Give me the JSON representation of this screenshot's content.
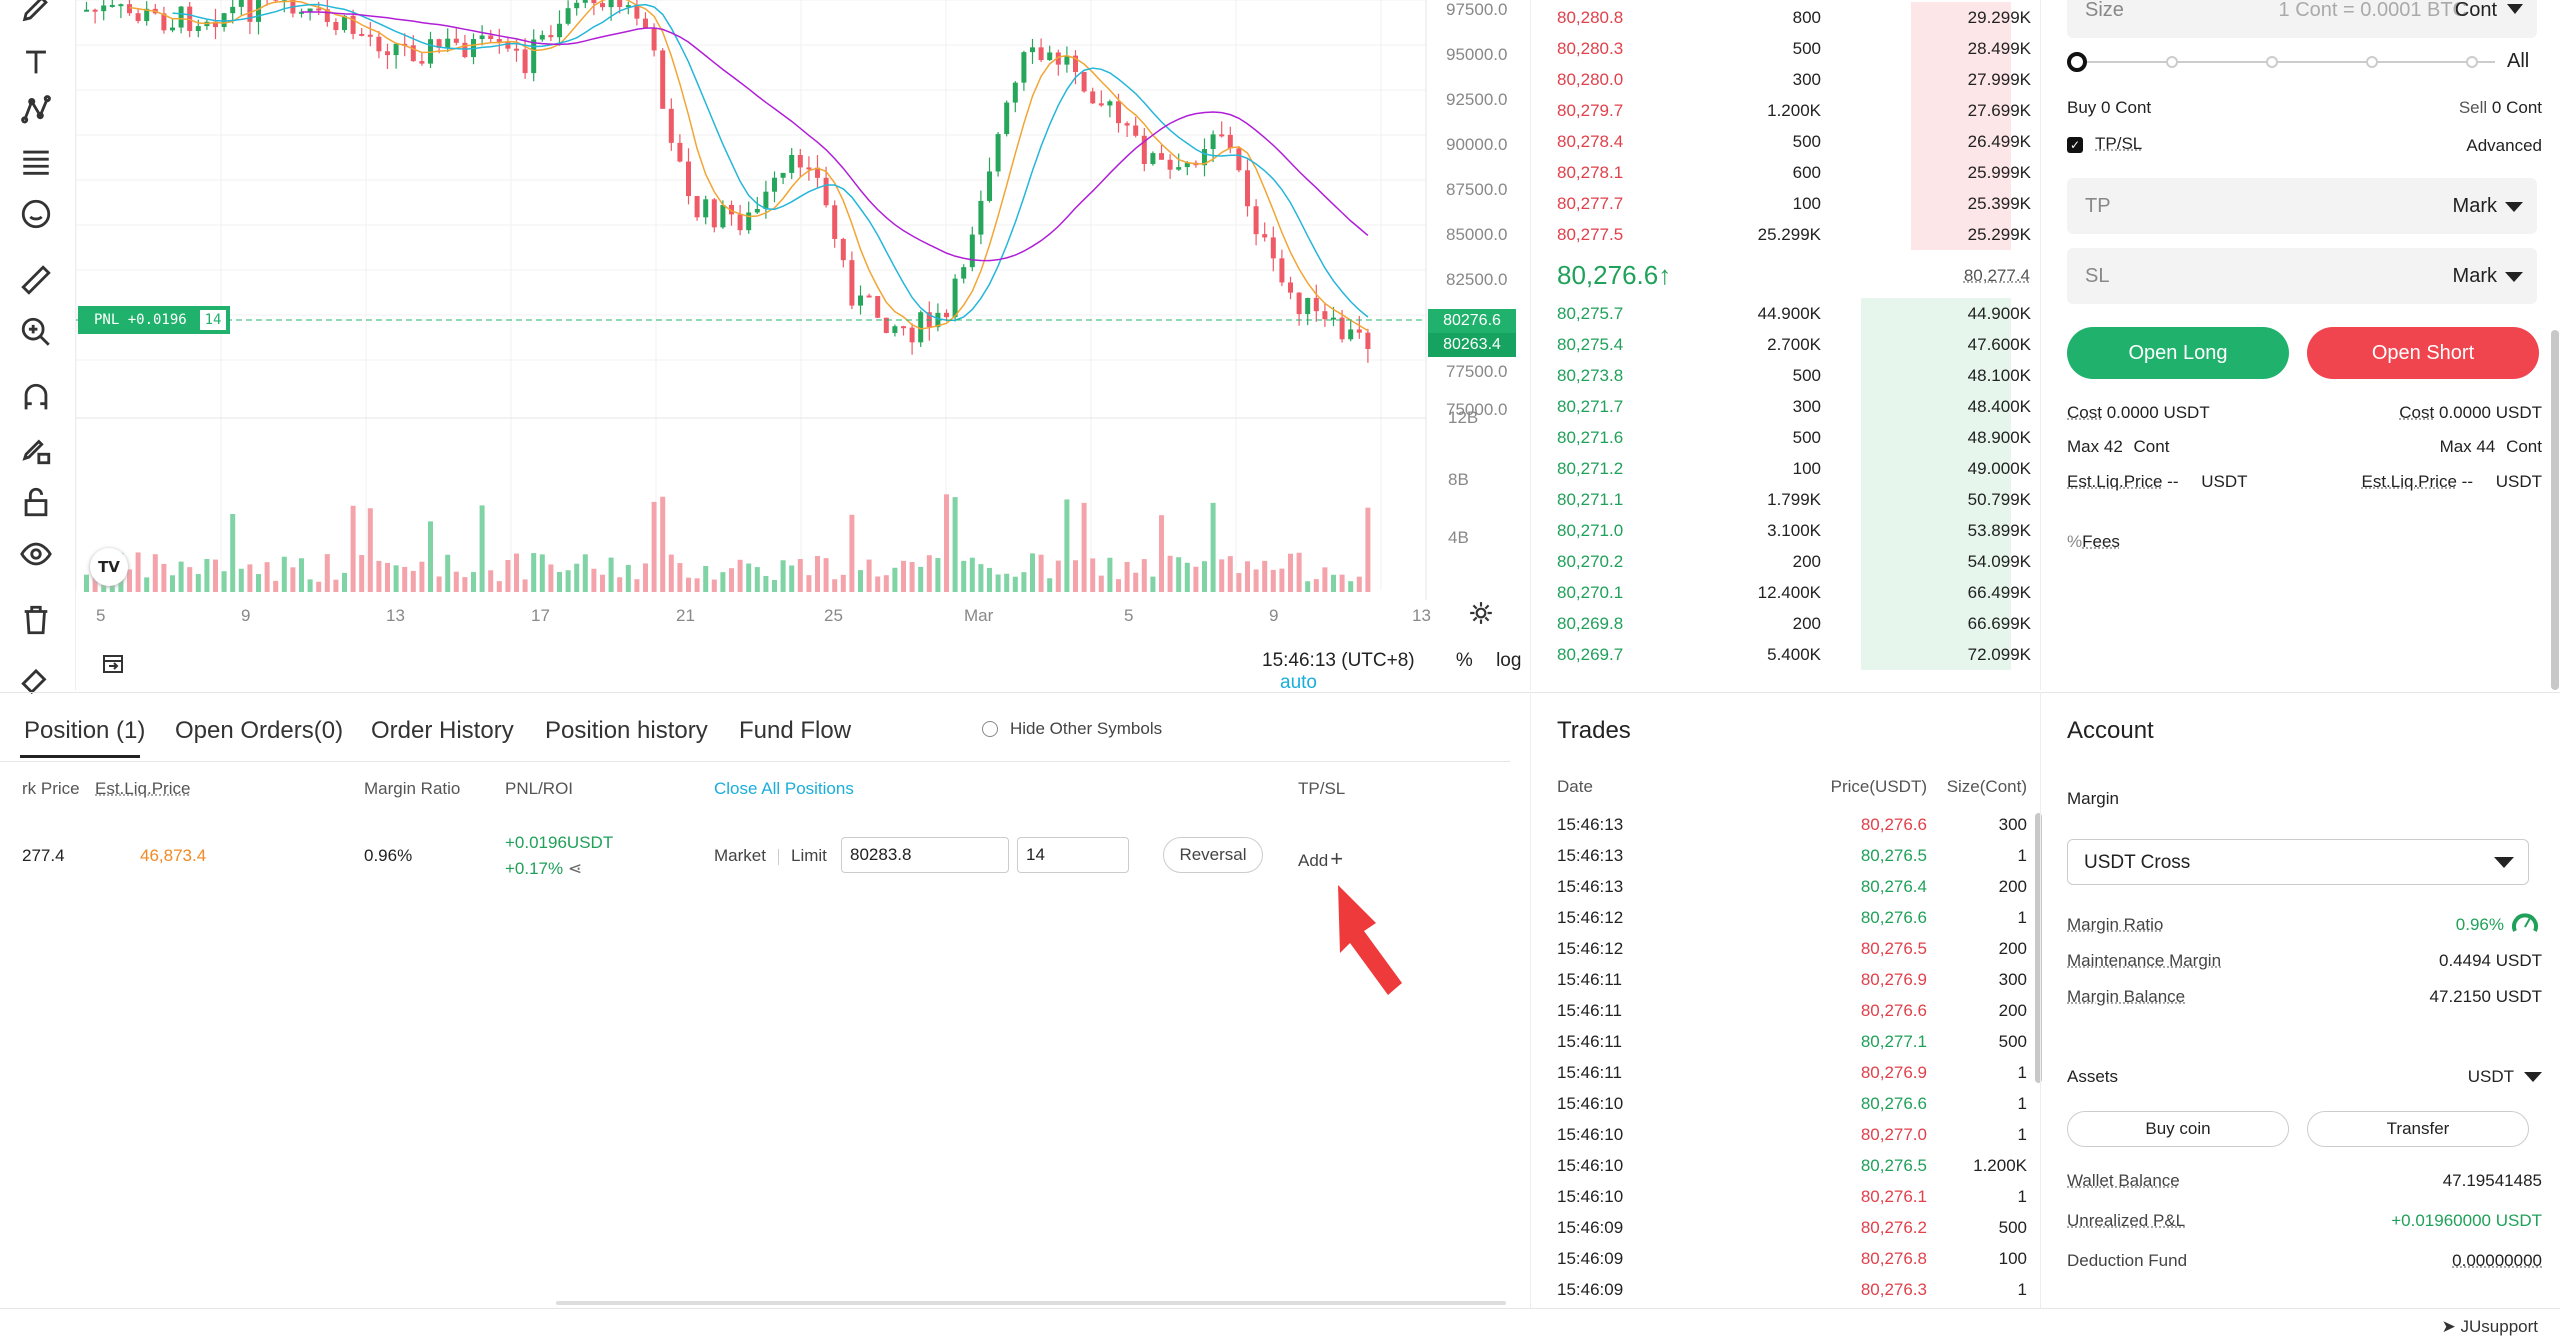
{
  "chart": {
    "y_ticks": [
      "97500.0",
      "95000.0",
      "92500.0",
      "90000.0",
      "87500.0",
      "85000.0",
      "82500.0",
      "77500.0",
      "75000.0"
    ],
    "vol_ticks": [
      "12B",
      "8B",
      "4B"
    ],
    "x_ticks": [
      "5",
      "9",
      "13",
      "17",
      "21",
      "25",
      "Mar",
      "5",
      "9",
      "13"
    ],
    "price_badge_last": "80276.6",
    "price_badge_mark": "80263.4",
    "pnl_label": "PNL +0.0196",
    "pnl_qty": "14",
    "time": "15:46:13 (UTC+8)",
    "pct": "%",
    "log": "log",
    "auto": "auto",
    "logo": "TV"
  },
  "orderbook": {
    "asks": [
      {
        "price": "80,280.8",
        "size": "800",
        "total": "29.299K",
        "depth": 0.2
      },
      {
        "price": "80,280.3",
        "size": "500",
        "total": "28.499K",
        "depth": 0.2
      },
      {
        "price": "80,280.0",
        "size": "300",
        "total": "27.999K",
        "depth": 0.2
      },
      {
        "price": "80,279.7",
        "size": "1.200K",
        "total": "27.699K",
        "depth": 0.2
      },
      {
        "price": "80,278.4",
        "size": "500",
        "total": "26.499K",
        "depth": 0.2
      },
      {
        "price": "80,278.1",
        "size": "600",
        "total": "25.999K",
        "depth": 0.2
      },
      {
        "price": "80,277.7",
        "size": "100",
        "total": "25.399K",
        "depth": 0.2
      },
      {
        "price": "80,277.5",
        "size": "25.299K",
        "total": "25.299K",
        "depth": 0.2
      }
    ],
    "last_price": "80,276.6",
    "last_arrow": "↑",
    "mark_price": "80,277.4",
    "bids": [
      {
        "price": "80,275.7",
        "size": "44.900K",
        "total": "44.900K",
        "depth": 0.3
      },
      {
        "price": "80,275.4",
        "size": "2.700K",
        "total": "47.600K",
        "depth": 0.3
      },
      {
        "price": "80,273.8",
        "size": "500",
        "total": "48.100K",
        "depth": 0.3
      },
      {
        "price": "80,271.7",
        "size": "300",
        "total": "48.400K",
        "depth": 0.3
      },
      {
        "price": "80,271.6",
        "size": "500",
        "total": "48.900K",
        "depth": 0.3
      },
      {
        "price": "80,271.2",
        "size": "100",
        "total": "49.000K",
        "depth": 0.3
      },
      {
        "price": "80,271.1",
        "size": "1.799K",
        "total": "50.799K",
        "depth": 0.3
      },
      {
        "price": "80,271.0",
        "size": "3.100K",
        "total": "53.899K",
        "depth": 0.3
      },
      {
        "price": "80,270.2",
        "size": "200",
        "total": "54.099K",
        "depth": 0.3
      },
      {
        "price": "80,270.1",
        "size": "12.400K",
        "total": "66.499K",
        "depth": 0.3
      },
      {
        "price": "80,269.8",
        "size": "200",
        "total": "66.699K",
        "depth": 0.3
      },
      {
        "price": "80,269.7",
        "size": "5.400K",
        "total": "72.099K",
        "depth": 0.3
      }
    ]
  },
  "trade": {
    "size_label": "Size",
    "size_placeholder": "1 Cont = 0.0001 BTC",
    "size_unit": "Cont",
    "all": "All",
    "buy_label": "Buy",
    "buy_val": "0 Cont",
    "sell_label": "Sell",
    "sell_val": "0 Cont",
    "tpsl": "TP/SL",
    "advanced": "Advanced",
    "tp": "TP",
    "sl": "SL",
    "mark": "Mark",
    "open_long": "Open Long",
    "open_short": "Open Short",
    "cost_label": "Cost",
    "cost_long": "0.0000",
    "cost_short": "0.0000",
    "usdt": "USDT",
    "max_label": "Max",
    "max_long": "42",
    "max_short": "44",
    "cont": "Cont",
    "liq_label": "Est.Liq.Price",
    "liq_val": "--",
    "fees": "Fees"
  },
  "positions": {
    "tabs": [
      "Position (1)",
      "Open Orders(0)",
      "Order History",
      "Position history",
      "Fund Flow"
    ],
    "hide_other": "Hide Other Symbols",
    "headers": {
      "mark": "rk Price",
      "liq": "Est.Liq.Price",
      "margin": "Margin Ratio",
      "pnl": "PNL/ROI",
      "close_all": "Close All Positions",
      "tpsl": "TP/SL"
    },
    "row": {
      "mark": "277.4",
      "liq": "46,873.4",
      "margin": "0.96%",
      "pnl": "+0.0196USDT",
      "roi": "+0.17%",
      "market": "Market",
      "limit": "Limit",
      "limit_price": "80283.8",
      "qty": "14",
      "reversal": "Reversal",
      "add": "Add"
    }
  },
  "trades": {
    "title": "Trades",
    "headers": {
      "date": "Date",
      "price": "Price(USDT)",
      "size": "Size(Cont)"
    },
    "rows": [
      {
        "t": "15:46:13",
        "p": "80,276.6",
        "s": "300",
        "c": "red"
      },
      {
        "t": "15:46:13",
        "p": "80,276.5",
        "s": "1",
        "c": "green"
      },
      {
        "t": "15:46:13",
        "p": "80,276.4",
        "s": "200",
        "c": "green"
      },
      {
        "t": "15:46:12",
        "p": "80,276.6",
        "s": "1",
        "c": "green"
      },
      {
        "t": "15:46:12",
        "p": "80,276.5",
        "s": "200",
        "c": "red"
      },
      {
        "t": "15:46:11",
        "p": "80,276.9",
        "s": "300",
        "c": "red"
      },
      {
        "t": "15:46:11",
        "p": "80,276.6",
        "s": "200",
        "c": "red"
      },
      {
        "t": "15:46:11",
        "p": "80,277.1",
        "s": "500",
        "c": "green"
      },
      {
        "t": "15:46:11",
        "p": "80,276.9",
        "s": "1",
        "c": "red"
      },
      {
        "t": "15:46:10",
        "p": "80,276.6",
        "s": "1",
        "c": "green"
      },
      {
        "t": "15:46:10",
        "p": "80,277.0",
        "s": "1",
        "c": "red"
      },
      {
        "t": "15:46:10",
        "p": "80,276.5",
        "s": "1.200K",
        "c": "green"
      },
      {
        "t": "15:46:10",
        "p": "80,276.1",
        "s": "1",
        "c": "red"
      },
      {
        "t": "15:46:09",
        "p": "80,276.2",
        "s": "500",
        "c": "red"
      },
      {
        "t": "15:46:09",
        "p": "80,276.8",
        "s": "100",
        "c": "red"
      },
      {
        "t": "15:46:09",
        "p": "80,276.3",
        "s": "1",
        "c": "red"
      }
    ]
  },
  "account": {
    "title": "Account",
    "margin": "Margin",
    "margin_mode": "USDT Cross",
    "margin_ratio_label": "Margin Ratio",
    "margin_ratio": "0.96%",
    "maint_label": "Maintenance Margin",
    "maint": "0.4494 USDT",
    "balance_label": "Margin Balance",
    "balance": "47.2150 USDT",
    "assets": "Assets",
    "assets_unit": "USDT",
    "buy_coin": "Buy coin",
    "transfer": "Transfer",
    "wallet_label": "Wallet Balance",
    "wallet": "47.19541485",
    "upnl_label": "Unrealized P&L",
    "upnl": "+0.01960000 USDT",
    "deduct_label": "Deduction Fund",
    "deduct": "0.00000000"
  },
  "footer": {
    "support": "JUsupport"
  }
}
